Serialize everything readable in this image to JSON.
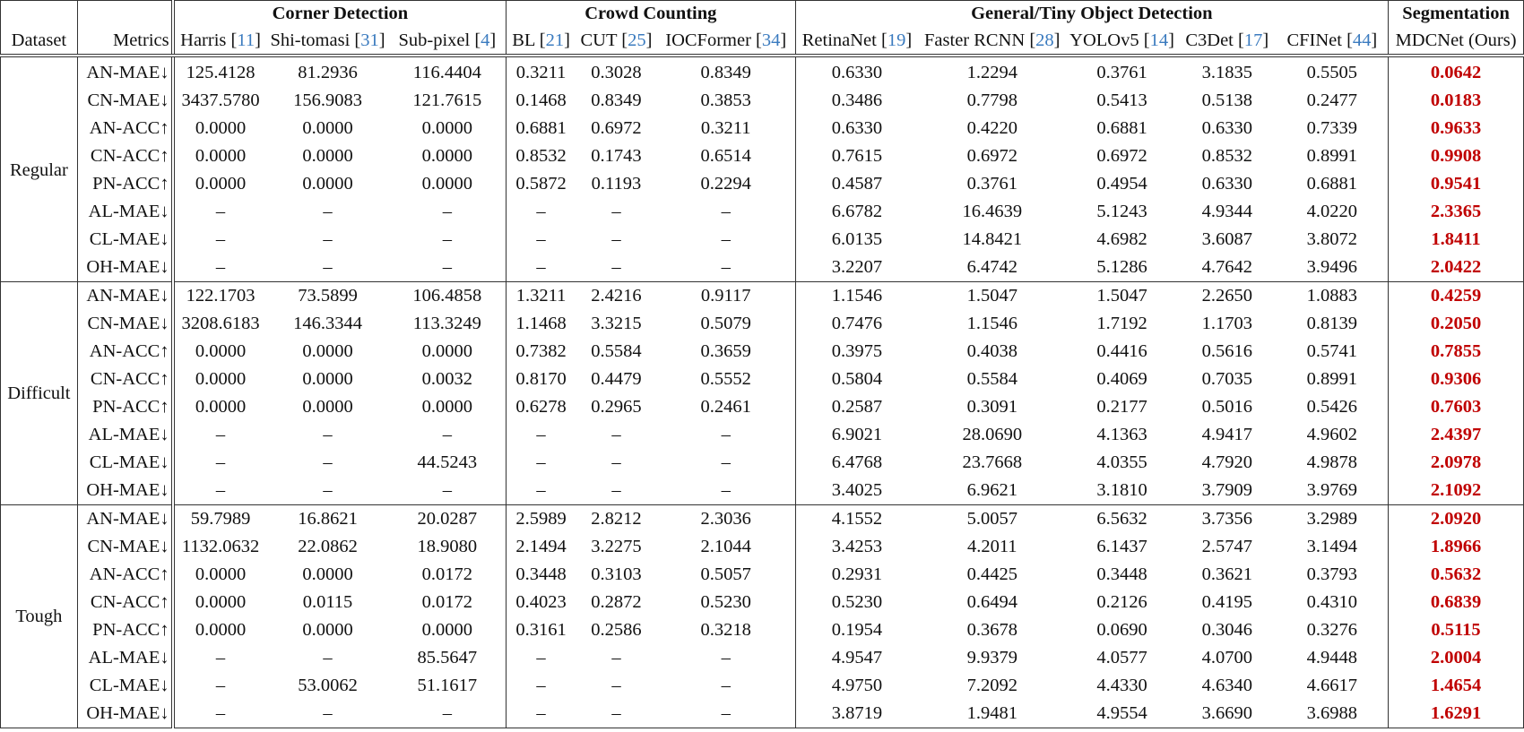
{
  "table": {
    "header": {
      "dataset_label": "Dataset",
      "metrics_label": "Metrics",
      "groups": [
        {
          "label": "Corner Detection",
          "span": 3
        },
        {
          "label": "Crowd Counting",
          "span": 3
        },
        {
          "label": "General/Tiny Object Detection",
          "span": 5
        },
        {
          "label": "Segmentation",
          "span": 1
        }
      ],
      "methods": [
        {
          "name": "Harris",
          "cite": "11"
        },
        {
          "name": "Shi-tomasi",
          "cite": "31"
        },
        {
          "name": "Sub-pixel",
          "cite": "4"
        },
        {
          "name": "BL",
          "cite": "21"
        },
        {
          "name": "CUT",
          "cite": "25"
        },
        {
          "name": "IOCFormer",
          "cite": "34"
        },
        {
          "name": "RetinaNet",
          "cite": "19"
        },
        {
          "name": "Faster RCNN",
          "cite": "28"
        },
        {
          "name": "YOLOv5",
          "cite": "14"
        },
        {
          "name": "C3Det",
          "cite": "17"
        },
        {
          "name": "CFINet",
          "cite": "44"
        },
        {
          "name": "MDCNet (Ours)",
          "cite": null
        }
      ]
    },
    "sections": [
      {
        "dataset": "Regular",
        "rows": [
          {
            "metric": "AN-MAE↓",
            "values": [
              "125.4128",
              "81.2936",
              "116.4404",
              "0.3211",
              "0.3028",
              "0.8349",
              "0.6330",
              "1.2294",
              "0.3761",
              "3.1835",
              "0.5505",
              "0.0642"
            ]
          },
          {
            "metric": "CN-MAE↓",
            "values": [
              "3437.5780",
              "156.9083",
              "121.7615",
              "0.1468",
              "0.8349",
              "0.3853",
              "0.3486",
              "0.7798",
              "0.5413",
              "0.5138",
              "0.2477",
              "0.0183"
            ]
          },
          {
            "metric": "AN-ACC↑",
            "values": [
              "0.0000",
              "0.0000",
              "0.0000",
              "0.6881",
              "0.6972",
              "0.3211",
              "0.6330",
              "0.4220",
              "0.6881",
              "0.6330",
              "0.7339",
              "0.9633"
            ]
          },
          {
            "metric": "CN-ACC↑",
            "values": [
              "0.0000",
              "0.0000",
              "0.0000",
              "0.8532",
              "0.1743",
              "0.6514",
              "0.7615",
              "0.6972",
              "0.6972",
              "0.8532",
              "0.8991",
              "0.9908"
            ]
          },
          {
            "metric": "PN-ACC↑",
            "values": [
              "0.0000",
              "0.0000",
              "0.0000",
              "0.5872",
              "0.1193",
              "0.2294",
              "0.4587",
              "0.3761",
              "0.4954",
              "0.6330",
              "0.6881",
              "0.9541"
            ]
          },
          {
            "metric": "AL-MAE↓",
            "values": [
              "–",
              "–",
              "–",
              "–",
              "–",
              "–",
              "6.6782",
              "16.4639",
              "5.1243",
              "4.9344",
              "4.0220",
              "2.3365"
            ]
          },
          {
            "metric": "CL-MAE↓",
            "values": [
              "–",
              "–",
              "–",
              "–",
              "–",
              "–",
              "6.0135",
              "14.8421",
              "4.6982",
              "3.6087",
              "3.8072",
              "1.8411"
            ]
          },
          {
            "metric": "OH-MAE↓",
            "values": [
              "–",
              "–",
              "–",
              "–",
              "–",
              "–",
              "3.2207",
              "6.4742",
              "5.1286",
              "4.7642",
              "3.9496",
              "2.0422"
            ]
          }
        ]
      },
      {
        "dataset": "Difficult",
        "rows": [
          {
            "metric": "AN-MAE↓",
            "values": [
              "122.1703",
              "73.5899",
              "106.4858",
              "1.3211",
              "2.4216",
              "0.9117",
              "1.1546",
              "1.5047",
              "1.5047",
              "2.2650",
              "1.0883",
              "0.4259"
            ]
          },
          {
            "metric": "CN-MAE↓",
            "values": [
              "3208.6183",
              "146.3344",
              "113.3249",
              "1.1468",
              "3.3215",
              "0.5079",
              "0.7476",
              "1.1546",
              "1.7192",
              "1.1703",
              "0.8139",
              "0.2050"
            ]
          },
          {
            "metric": "AN-ACC↑",
            "values": [
              "0.0000",
              "0.0000",
              "0.0000",
              "0.7382",
              "0.5584",
              "0.3659",
              "0.3975",
              "0.4038",
              "0.4416",
              "0.5616",
              "0.5741",
              "0.7855"
            ]
          },
          {
            "metric": "CN-ACC↑",
            "values": [
              "0.0000",
              "0.0000",
              "0.0032",
              "0.8170",
              "0.4479",
              "0.5552",
              "0.5804",
              "0.5584",
              "0.4069",
              "0.7035",
              "0.8991",
              "0.9306"
            ]
          },
          {
            "metric": "PN-ACC↑",
            "values": [
              "0.0000",
              "0.0000",
              "0.0000",
              "0.6278",
              "0.2965",
              "0.2461",
              "0.2587",
              "0.3091",
              "0.2177",
              "0.5016",
              "0.5426",
              "0.7603"
            ]
          },
          {
            "metric": "AL-MAE↓",
            "values": [
              "–",
              "–",
              "–",
              "–",
              "–",
              "–",
              "6.9021",
              "28.0690",
              "4.1363",
              "4.9417",
              "4.9602",
              "2.4397"
            ]
          },
          {
            "metric": "CL-MAE↓",
            "values": [
              "–",
              "–",
              "44.5243",
              "–",
              "–",
              "–",
              "6.4768",
              "23.7668",
              "4.0355",
              "4.7920",
              "4.9878",
              "2.0978"
            ]
          },
          {
            "metric": "OH-MAE↓",
            "values": [
              "–",
              "–",
              "–",
              "–",
              "–",
              "–",
              "3.4025",
              "6.9621",
              "3.1810",
              "3.7909",
              "3.9769",
              "2.1092"
            ]
          }
        ]
      },
      {
        "dataset": "Tough",
        "rows": [
          {
            "metric": "AN-MAE↓",
            "values": [
              "59.7989",
              "16.8621",
              "20.0287",
              "2.5989",
              "2.8212",
              "2.3036",
              "4.1552",
              "5.0057",
              "6.5632",
              "3.7356",
              "3.2989",
              "2.0920"
            ]
          },
          {
            "metric": "CN-MAE↓",
            "values": [
              "1132.0632",
              "22.0862",
              "18.9080",
              "2.1494",
              "3.2275",
              "2.1044",
              "3.4253",
              "4.2011",
              "6.1437",
              "2.5747",
              "3.1494",
              "1.8966"
            ]
          },
          {
            "metric": "AN-ACC↑",
            "values": [
              "0.0000",
              "0.0000",
              "0.0172",
              "0.3448",
              "0.3103",
              "0.5057",
              "0.2931",
              "0.4425",
              "0.3448",
              "0.3621",
              "0.3793",
              "0.5632"
            ]
          },
          {
            "metric": "CN-ACC↑",
            "values": [
              "0.0000",
              "0.0115",
              "0.0172",
              "0.4023",
              "0.2872",
              "0.5230",
              "0.5230",
              "0.6494",
              "0.2126",
              "0.4195",
              "0.4310",
              "0.6839"
            ]
          },
          {
            "metric": "PN-ACC↑",
            "values": [
              "0.0000",
              "0.0000",
              "0.0000",
              "0.3161",
              "0.2586",
              "0.3218",
              "0.1954",
              "0.3678",
              "0.0690",
              "0.3046",
              "0.3276",
              "0.5115"
            ]
          },
          {
            "metric": "AL-MAE↓",
            "values": [
              "–",
              "–",
              "85.5647",
              "–",
              "–",
              "–",
              "4.9547",
              "9.9379",
              "4.0577",
              "4.0700",
              "4.9448",
              "2.0004"
            ]
          },
          {
            "metric": "CL-MAE↓",
            "values": [
              "–",
              "53.0062",
              "51.1617",
              "–",
              "–",
              "–",
              "4.9750",
              "7.2092",
              "4.4330",
              "4.6340",
              "4.6617",
              "1.4654"
            ]
          },
          {
            "metric": "OH-MAE↓",
            "values": [
              "–",
              "–",
              "–",
              "–",
              "–",
              "–",
              "3.8719",
              "1.9481",
              "4.9554",
              "3.6690",
              "3.6988",
              "1.6291"
            ]
          }
        ]
      }
    ],
    "colors": {
      "highlight_ours": "#c00000",
      "citation": "#3b7bbf",
      "rule": "#333333"
    }
  }
}
